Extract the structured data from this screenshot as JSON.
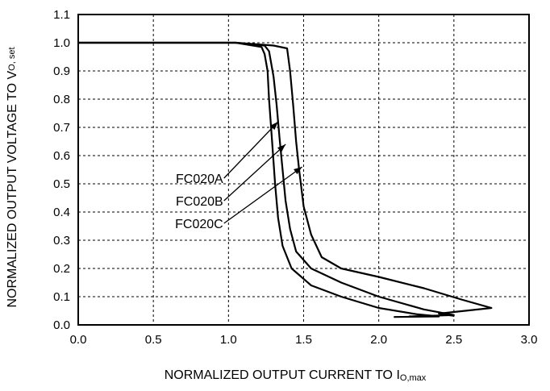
{
  "chart_data": {
    "type": "line",
    "xlabel": "NORMALIZED OUTPUT CURRENT TO I",
    "xlabel_sub": "O,max",
    "ylabel": "NORMALIZED OUTPUT VOLTAGE TO V",
    "ylabel_sub": "O, set",
    "xlim": [
      0.0,
      3.0
    ],
    "ylim": [
      0.0,
      1.1
    ],
    "x_ticks": [
      "0.0",
      "0.5",
      "1.0",
      "1.5",
      "2.0",
      "2.5",
      "3.0"
    ],
    "y_ticks": [
      "0.0",
      "0.1",
      "0.2",
      "0.3",
      "0.4",
      "0.5",
      "0.6",
      "0.7",
      "0.8",
      "0.9",
      "1.0",
      "1.1"
    ],
    "grid": true,
    "grid_style": "dashed",
    "line_color": "#000000",
    "series": [
      {
        "name": "FC020A",
        "points": [
          [
            0.0,
            1.0
          ],
          [
            1.05,
            1.0
          ],
          [
            1.22,
            0.985
          ],
          [
            1.24,
            0.96
          ],
          [
            1.26,
            0.9
          ],
          [
            1.27,
            0.8
          ],
          [
            1.29,
            0.65
          ],
          [
            1.31,
            0.5
          ],
          [
            1.33,
            0.38
          ],
          [
            1.36,
            0.28
          ],
          [
            1.42,
            0.2
          ],
          [
            1.55,
            0.14
          ],
          [
            1.75,
            0.1
          ],
          [
            2.0,
            0.06
          ],
          [
            2.25,
            0.038
          ],
          [
            2.4,
            0.03
          ],
          [
            2.1,
            0.028
          ]
        ]
      },
      {
        "name": "FC020B",
        "points": [
          [
            0.0,
            1.0
          ],
          [
            1.05,
            1.0
          ],
          [
            1.24,
            0.99
          ],
          [
            1.27,
            0.97
          ],
          [
            1.3,
            0.88
          ],
          [
            1.32,
            0.78
          ],
          [
            1.34,
            0.66
          ],
          [
            1.36,
            0.55
          ],
          [
            1.38,
            0.44
          ],
          [
            1.41,
            0.34
          ],
          [
            1.45,
            0.26
          ],
          [
            1.55,
            0.2
          ],
          [
            1.75,
            0.15
          ],
          [
            2.0,
            0.1
          ],
          [
            2.3,
            0.055
          ],
          [
            2.5,
            0.035
          ],
          [
            2.2,
            0.03
          ]
        ]
      },
      {
        "name": "FC020C",
        "points": [
          [
            0.0,
            1.0
          ],
          [
            1.05,
            1.0
          ],
          [
            1.3,
            0.99
          ],
          [
            1.39,
            0.98
          ],
          [
            1.41,
            0.9
          ],
          [
            1.43,
            0.78
          ],
          [
            1.45,
            0.65
          ],
          [
            1.47,
            0.55
          ],
          [
            1.5,
            0.42
          ],
          [
            1.55,
            0.32
          ],
          [
            1.62,
            0.24
          ],
          [
            1.75,
            0.2
          ],
          [
            2.0,
            0.17
          ],
          [
            2.3,
            0.13
          ],
          [
            2.55,
            0.09
          ],
          [
            2.75,
            0.06
          ],
          [
            2.4,
            0.04
          ],
          [
            2.5,
            0.032
          ]
        ]
      }
    ],
    "annotations": [
      {
        "text": "FC020A",
        "x": 0.97,
        "y": 0.52,
        "arrow_to": [
          1.33,
          0.72
        ]
      },
      {
        "text": "FC020B",
        "x": 0.97,
        "y": 0.44,
        "arrow_to": [
          1.38,
          0.64
        ]
      },
      {
        "text": "FC020C",
        "x": 0.97,
        "y": 0.36,
        "arrow_to": [
          1.49,
          0.56
        ]
      }
    ]
  }
}
